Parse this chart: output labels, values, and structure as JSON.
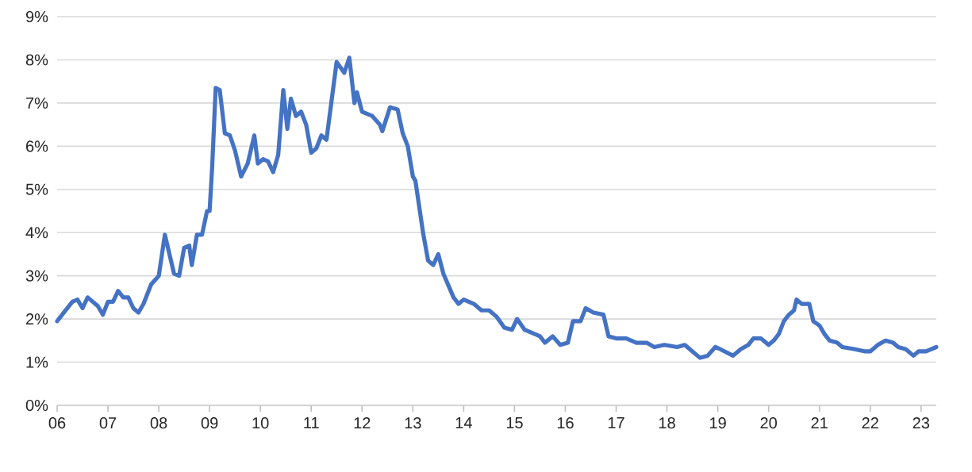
{
  "chart_data": {
    "type": "line",
    "grid": "y",
    "x": [
      2006.0,
      2006.1,
      2006.3,
      2006.4,
      2006.5,
      2006.6,
      2006.8,
      2006.9,
      2007.0,
      2007.1,
      2007.2,
      2007.3,
      2007.4,
      2007.5,
      2007.6,
      2007.7,
      2007.85,
      2008.0,
      2008.12,
      2008.3,
      2008.4,
      2008.5,
      2008.6,
      2008.65,
      2008.75,
      2008.85,
      2008.95,
      2009.0,
      2009.05,
      2009.12,
      2009.2,
      2009.3,
      2009.4,
      2009.5,
      2009.62,
      2009.75,
      2009.88,
      2009.95,
      2010.05,
      2010.15,
      2010.25,
      2010.35,
      2010.45,
      2010.53,
      2010.6,
      2010.7,
      2010.8,
      2010.9,
      2011.0,
      2011.1,
      2011.2,
      2011.3,
      2011.5,
      2011.65,
      2011.75,
      2011.85,
      2011.9,
      2012.0,
      2012.2,
      2012.35,
      2012.4,
      2012.55,
      2012.7,
      2012.8,
      2012.9,
      2013.0,
      2013.05,
      2013.2,
      2013.3,
      2013.4,
      2013.5,
      2013.6,
      2013.8,
      2013.9,
      2014.0,
      2014.2,
      2014.35,
      2014.5,
      2014.65,
      2014.8,
      2014.95,
      2015.05,
      2015.2,
      2015.4,
      2015.5,
      2015.6,
      2015.75,
      2015.9,
      2016.05,
      2016.15,
      2016.3,
      2016.4,
      2016.55,
      2016.75,
      2016.85,
      2017.0,
      2017.2,
      2017.4,
      2017.6,
      2017.75,
      2017.95,
      2018.2,
      2018.35,
      2018.5,
      2018.65,
      2018.8,
      2018.95,
      2019.05,
      2019.3,
      2019.45,
      2019.6,
      2019.7,
      2019.85,
      2020.0,
      2020.1,
      2020.2,
      2020.3,
      2020.4,
      2020.5,
      2020.55,
      2020.65,
      2020.8,
      2020.88,
      2021.0,
      2021.1,
      2021.2,
      2021.35,
      2021.45,
      2021.7,
      2021.9,
      2022.0,
      2022.15,
      2022.3,
      2022.45,
      2022.55,
      2022.7,
      2022.85,
      2022.95,
      2023.1,
      2023.3
    ],
    "series": [
      {
        "color": "#4472c4",
        "values": [
          1.95,
          2.1,
          2.4,
          2.45,
          2.25,
          2.5,
          2.3,
          2.1,
          2.4,
          2.4,
          2.65,
          2.5,
          2.5,
          2.25,
          2.15,
          2.35,
          2.8,
          3.0,
          3.95,
          3.05,
          3.0,
          3.65,
          3.7,
          3.25,
          3.95,
          3.95,
          4.5,
          4.5,
          5.5,
          7.35,
          7.3,
          6.3,
          6.25,
          5.9,
          5.3,
          5.6,
          6.25,
          5.6,
          5.7,
          5.65,
          5.4,
          5.8,
          7.3,
          6.4,
          7.1,
          6.7,
          6.8,
          6.5,
          5.85,
          5.95,
          6.25,
          6.15,
          7.95,
          7.7,
          8.05,
          7.0,
          7.25,
          6.8,
          6.7,
          6.5,
          6.35,
          6.9,
          6.85,
          6.3,
          6.0,
          5.3,
          5.2,
          4.0,
          3.35,
          3.25,
          3.5,
          3.05,
          2.5,
          2.35,
          2.45,
          2.35,
          2.2,
          2.2,
          2.05,
          1.8,
          1.75,
          2.0,
          1.75,
          1.65,
          1.6,
          1.45,
          1.6,
          1.4,
          1.45,
          1.95,
          1.95,
          2.25,
          2.15,
          2.1,
          1.6,
          1.55,
          1.55,
          1.45,
          1.45,
          1.35,
          1.4,
          1.35,
          1.4,
          1.25,
          1.1,
          1.15,
          1.35,
          1.3,
          1.15,
          1.3,
          1.4,
          1.55,
          1.55,
          1.4,
          1.5,
          1.65,
          1.95,
          2.1,
          2.2,
          2.45,
          2.35,
          2.35,
          1.95,
          1.85,
          1.65,
          1.5,
          1.45,
          1.35,
          1.3,
          1.25,
          1.25,
          1.4,
          1.5,
          1.45,
          1.35,
          1.3,
          1.15,
          1.25,
          1.25,
          1.35
        ]
      }
    ],
    "line_style": "solid",
    "xlim": [
      2006,
      2023.3
    ],
    "ylim": [
      0,
      9
    ],
    "xticks": [
      {
        "value": 2006,
        "label": "06"
      },
      {
        "value": 2007,
        "label": "07"
      },
      {
        "value": 2008,
        "label": "08"
      },
      {
        "value": 2009,
        "label": "09"
      },
      {
        "value": 2010,
        "label": "10"
      },
      {
        "value": 2011,
        "label": "11"
      },
      {
        "value": 2012,
        "label": "12"
      },
      {
        "value": 2013,
        "label": "13"
      },
      {
        "value": 2014,
        "label": "14"
      },
      {
        "value": 2015,
        "label": "15"
      },
      {
        "value": 2016,
        "label": "16"
      },
      {
        "value": 2017,
        "label": "17"
      },
      {
        "value": 2018,
        "label": "18"
      },
      {
        "value": 2019,
        "label": "19"
      },
      {
        "value": 2020,
        "label": "20"
      },
      {
        "value": 2021,
        "label": "21"
      },
      {
        "value": 2022,
        "label": "22"
      },
      {
        "value": 2023,
        "label": "23"
      }
    ],
    "yticks": [
      {
        "value": 0,
        "label": "0%"
      },
      {
        "value": 1,
        "label": "1%"
      },
      {
        "value": 2,
        "label": "2%"
      },
      {
        "value": 3,
        "label": "3%"
      },
      {
        "value": 4,
        "label": "4%"
      },
      {
        "value": 5,
        "label": "5%"
      },
      {
        "value": 6,
        "label": "6%"
      },
      {
        "value": 7,
        "label": "7%"
      },
      {
        "value": 8,
        "label": "8%"
      },
      {
        "value": 9,
        "label": "9%"
      }
    ]
  }
}
